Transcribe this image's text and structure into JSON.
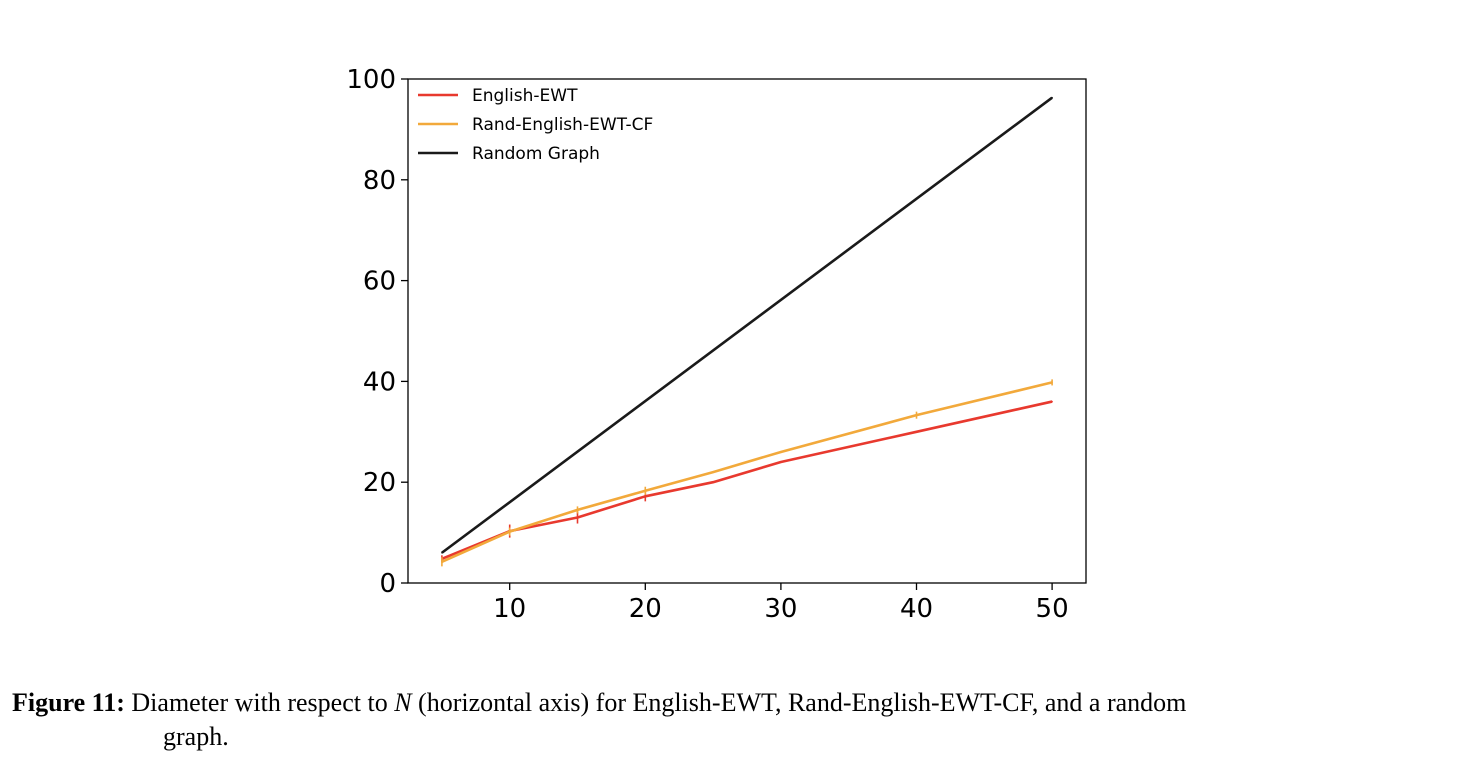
{
  "chart_data": {
    "type": "line",
    "title": "",
    "xlabel": "",
    "ylabel": "",
    "xlim": [
      2.5,
      52.5
    ],
    "ylim": [
      0,
      100
    ],
    "x_ticks": [
      10,
      20,
      30,
      40,
      50
    ],
    "y_ticks": [
      0,
      20,
      40,
      60,
      80,
      100
    ],
    "grid": false,
    "legend_position": "top-left",
    "series": [
      {
        "name": "English-EWT",
        "color": "#e8392e",
        "x": [
          5,
          10,
          15,
          20,
          25,
          30,
          40,
          50
        ],
        "y": [
          4.8,
          10.3,
          13,
          17.2,
          20,
          24,
          30,
          36
        ],
        "error_bars": [
          0.7,
          1.3,
          1.2,
          1.0,
          0,
          0,
          0,
          0
        ]
      },
      {
        "name": "Rand-English-EWT-CF",
        "color": "#f2a93b",
        "x": [
          5,
          10,
          15,
          20,
          25,
          30,
          40,
          50
        ],
        "y": [
          4.2,
          10.2,
          14.5,
          18.3,
          22,
          26,
          33.3,
          39.8
        ],
        "error_bars": [
          0.9,
          0.8,
          0.7,
          0.8,
          0,
          0,
          0.7,
          0.6
        ]
      },
      {
        "name": "Random Graph",
        "color": "#1a1a1a",
        "x": [
          5,
          50
        ],
        "y": [
          6,
          96.3
        ],
        "error_bars": [
          0,
          0
        ]
      }
    ]
  },
  "caption": {
    "label": "Figure 11:",
    "text_before": " Diameter with respect to ",
    "variable": "N",
    "text_after_line1": " (horizontal axis) for English-EWT, Rand-English-EWT-CF, and a random",
    "text_line2": "graph."
  }
}
